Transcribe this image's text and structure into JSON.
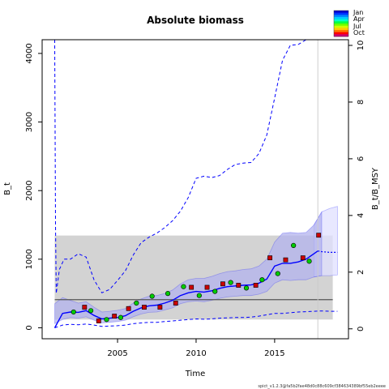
{
  "chart_data": {
    "type": "line",
    "title": "Absolute biomass",
    "xlabel": "Time",
    "ylabel": "B_t",
    "ylabel_right": "B_t/B_MSY",
    "xlim": [
      2000.2,
      2019.7
    ],
    "ylim": [
      -160,
      4200
    ],
    "ylim_right": [
      -0.35,
      10.2
    ],
    "x_ticks": [
      2005,
      2010,
      2015
    ],
    "x_tick_labels": [
      "2005",
      "2010",
      "2015"
    ],
    "y_ticks": [
      0,
      1000,
      2000,
      3000,
      4000
    ],
    "y_tick_labels": [
      "0",
      "1000",
      "2000",
      "3000",
      "4000"
    ],
    "y_right_ticks": [
      0,
      2,
      4,
      6,
      8,
      10
    ],
    "y_right_tick_labels": [
      "0",
      "2",
      "4",
      "6",
      "8",
      "10"
    ],
    "bmsy": 410,
    "bmsy_band": [
      120,
      1345
    ],
    "forecast_start": 2017.75,
    "grid": false,
    "legend_position": "top-right",
    "legend_labels": [
      "Jan",
      "Apr",
      "Jul",
      "Oct"
    ],
    "series": [
      {
        "role": "median",
        "x": [
          2001.0,
          2001.5,
          2002.0,
          2002.5,
          2003.0,
          2003.5,
          2004.0,
          2004.5,
          2005.0,
          2005.5,
          2006.0,
          2006.5,
          2007.0,
          2007.5,
          2008.0,
          2008.5,
          2009.0,
          2009.5,
          2010.0,
          2010.5,
          2011.0,
          2011.5,
          2012.0,
          2012.5,
          2013.0,
          2013.5,
          2014.0,
          2014.5,
          2015.0,
          2015.5,
          2016.0,
          2016.5,
          2017.0,
          2017.5,
          2017.75
        ],
        "y": [
          0,
          210,
          230,
          225,
          250,
          180,
          130,
          140,
          150,
          175,
          240,
          290,
          320,
          330,
          360,
          400,
          470,
          510,
          530,
          520,
          540,
          575,
          600,
          610,
          620,
          625,
          650,
          710,
          900,
          940,
          940,
          960,
          1000,
          1080,
          1120
        ]
      },
      {
        "role": "median-forecast",
        "x": [
          2017.75,
          2018.0,
          2018.5,
          2019.0
        ],
        "y": [
          1120,
          1110,
          1100,
          1100
        ]
      },
      {
        "role": "ci-upper",
        "x": [
          2001.0,
          2001.5,
          2002.0,
          2002.5,
          2003.0,
          2003.5,
          2004.0,
          2004.5,
          2005.0,
          2005.5,
          2006.0,
          2006.5,
          2007.0,
          2007.5,
          2008.0,
          2008.5,
          2009.0,
          2009.5,
          2010.0,
          2010.5,
          2011.0,
          2011.5,
          2012.0,
          2012.5,
          2013.0,
          2013.5,
          2014.0,
          2014.5,
          2015.0,
          2015.5,
          2016.0,
          2016.5,
          2017.0,
          2017.5,
          2018.0,
          2018.5,
          2019.0
        ],
        "y": [
          350,
          440,
          400,
          360,
          380,
          300,
          230,
          240,
          255,
          280,
          360,
          420,
          460,
          470,
          500,
          550,
          640,
          700,
          720,
          720,
          750,
          790,
          820,
          830,
          850,
          860,
          900,
          1000,
          1250,
          1380,
          1390,
          1380,
          1390,
          1500,
          1690,
          1740,
          1770
        ]
      },
      {
        "role": "ci-lower",
        "x": [
          2001.0,
          2001.5,
          2002.0,
          2002.5,
          2003.0,
          2003.5,
          2004.0,
          2004.5,
          2005.0,
          2005.5,
          2006.0,
          2006.5,
          2007.0,
          2007.5,
          2008.0,
          2008.5,
          2009.0,
          2009.5,
          2010.0,
          2010.5,
          2011.0,
          2011.5,
          2012.0,
          2012.5,
          2013.0,
          2013.5,
          2014.0,
          2014.5,
          2015.0,
          2015.5,
          2016.0,
          2016.5,
          2017.0,
          2017.5,
          2018.0,
          2018.5,
          2019.0
        ],
        "y": [
          60,
          120,
          150,
          140,
          160,
          110,
          70,
          80,
          90,
          110,
          160,
          200,
          225,
          230,
          260,
          290,
          350,
          380,
          390,
          380,
          400,
          430,
          450,
          460,
          470,
          470,
          490,
          530,
          650,
          700,
          690,
          700,
          700,
          740,
          760,
          760,
          770
        ]
      },
      {
        "role": "pi-upper",
        "x": [
          2001.0,
          2001.05,
          2001.1,
          2001.3,
          2001.6,
          2002.0,
          2002.5,
          2003.0,
          2003.5,
          2004.0,
          2004.5,
          2005.0,
          2005.5,
          2006.0,
          2006.5,
          2007.0,
          2007.5,
          2008.0,
          2008.5,
          2009.0,
          2009.5,
          2010.0,
          2010.5,
          2011.0,
          2011.5,
          2012.0,
          2012.5,
          2013.0,
          2013.5,
          2014.0,
          2014.5,
          2015.0,
          2015.5,
          2016.0,
          2016.5,
          2017.0,
          2017.5,
          2018.0,
          2018.5,
          2019.0
        ],
        "y": [
          4200,
          1500,
          500,
          850,
          1000,
          1000,
          1080,
          1030,
          700,
          510,
          560,
          690,
          830,
          1060,
          1240,
          1320,
          1380,
          1460,
          1560,
          1700,
          1900,
          2180,
          2210,
          2190,
          2220,
          2310,
          2380,
          2400,
          2410,
          2540,
          2810,
          3350,
          3900,
          4120,
          4130,
          4200,
          4200,
          4200,
          4200,
          4200
        ]
      },
      {
        "role": "pi-lower",
        "x": [
          2001.0,
          2001.5,
          2002.0,
          2002.5,
          2003.0,
          2003.5,
          2004.0,
          2004.5,
          2005.0,
          2005.5,
          2006.0,
          2006.5,
          2007.0,
          2007.5,
          2008.0,
          2008.5,
          2009.0,
          2009.5,
          2010.0,
          2010.5,
          2011.0,
          2011.5,
          2012.0,
          2012.5,
          2013.0,
          2013.5,
          2014.0,
          2014.5,
          2015.0,
          2015.5,
          2016.0,
          2016.5,
          2017.0,
          2017.5,
          2018.0,
          2018.5,
          2019.0
        ],
        "y": [
          0,
          40,
          50,
          45,
          55,
          40,
          20,
          25,
          30,
          40,
          60,
          70,
          80,
          80,
          90,
          100,
          110,
          120,
          130,
          125,
          130,
          140,
          145,
          150,
          150,
          155,
          170,
          190,
          210,
          210,
          220,
          230,
          235,
          240,
          245,
          240,
          240
        ]
      },
      {
        "role": "obs-index-1",
        "marker": "square",
        "color": "#cc0000",
        "x": [
          2002.9,
          2003.8,
          2004.8,
          2005.7,
          2006.7,
          2007.7,
          2008.7,
          2009.7,
          2010.7,
          2011.7,
          2012.7,
          2013.8,
          2014.7,
          2015.7,
          2016.8,
          2017.8
        ],
        "y": [
          300,
          100,
          170,
          280,
          300,
          300,
          360,
          590,
          590,
          640,
          620,
          620,
          1020,
          990,
          1020,
          1350
        ]
      },
      {
        "role": "obs-index-2",
        "marker": "circle",
        "color": "#00cc00",
        "x": [
          2002.2,
          2003.3,
          2004.3,
          2005.2,
          2006.2,
          2007.2,
          2008.2,
          2009.2,
          2010.2,
          2011.2,
          2012.2,
          2013.2,
          2014.2,
          2015.2,
          2016.2,
          2017.2
        ],
        "y": [
          230,
          250,
          120,
          150,
          360,
          460,
          500,
          600,
          470,
          530,
          660,
          580,
          700,
          790,
          1200,
          970
        ]
      }
    ]
  },
  "footer": {
    "text": "spict_v1.2.3@fa5b2fae48d0c88c609cf384634389bf55eb2eeee"
  },
  "colors": {
    "median": "#0000ff",
    "ci_fill": "#b3b3ee",
    "forecast_fill": "#e0e0ff",
    "band": "#d3d3d3",
    "bmsy_line": "#555555",
    "forecast_line": "#cccccc"
  }
}
